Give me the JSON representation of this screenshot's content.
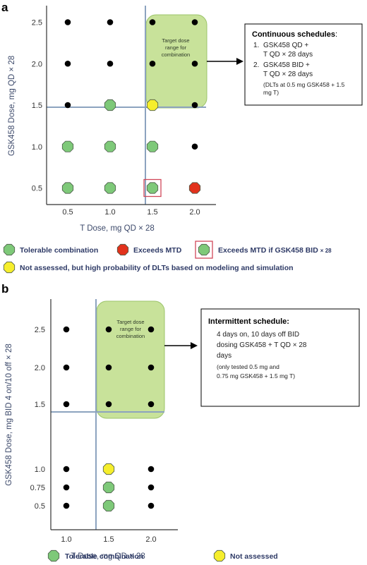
{
  "colors": {
    "tolerable": "#7ec979",
    "exceeds": "#e2321c",
    "not_assessed": "#f6ee2c",
    "dot": "#000000",
    "target_fill": "#c8e29a",
    "axis": "#333333",
    "divider": "#8ca3bf",
    "highlight_box": "#d1485a"
  },
  "chart_data": [
    {
      "panel": "a",
      "type": "scatter",
      "xlabel": "T Dose, mg QD × 28",
      "ylabel": "GSK458 Dose, mg QD × 28",
      "x_ticks": [
        "0.5",
        "1.0",
        "1.5",
        "2.0"
      ],
      "y_ticks": [
        "0.5",
        "1.0",
        "1.5",
        "2.0",
        "2.5"
      ],
      "xlim": [
        0.25,
        2.25
      ],
      "ylim": [
        0.3,
        2.7
      ],
      "x_divider": 1.4,
      "y_divider": 1.4,
      "target_region": {
        "label_lines": [
          "Target dose",
          "range for",
          "combination"
        ],
        "x": [
          1.4,
          2.15
        ],
        "y": [
          1.38,
          2.7
        ]
      },
      "points": [
        {
          "x": 0.5,
          "y": 0.5,
          "status": "tolerable"
        },
        {
          "x": 1.0,
          "y": 0.5,
          "status": "tolerable"
        },
        {
          "x": 1.5,
          "y": 0.5,
          "status": "tolerable",
          "highlight": true
        },
        {
          "x": 2.0,
          "y": 0.5,
          "status": "exceeds"
        },
        {
          "x": 0.5,
          "y": 1.0,
          "status": "tolerable"
        },
        {
          "x": 1.0,
          "y": 1.0,
          "status": "tolerable"
        },
        {
          "x": 1.5,
          "y": 1.0,
          "status": "tolerable"
        },
        {
          "x": 2.0,
          "y": 1.0,
          "status": "dot"
        },
        {
          "x": 0.5,
          "y": 1.5,
          "status": "dot"
        },
        {
          "x": 1.0,
          "y": 1.5,
          "status": "tolerable"
        },
        {
          "x": 1.5,
          "y": 1.5,
          "status": "not_assessed"
        },
        {
          "x": 2.0,
          "y": 1.5,
          "status": "dot"
        },
        {
          "x": 0.5,
          "y": 2.0,
          "status": "dot"
        },
        {
          "x": 1.0,
          "y": 2.0,
          "status": "dot"
        },
        {
          "x": 1.5,
          "y": 2.0,
          "status": "dot"
        },
        {
          "x": 2.0,
          "y": 2.0,
          "status": "dot"
        },
        {
          "x": 0.5,
          "y": 2.5,
          "status": "dot"
        },
        {
          "x": 1.0,
          "y": 2.5,
          "status": "dot"
        },
        {
          "x": 1.5,
          "y": 2.5,
          "status": "dot"
        },
        {
          "x": 2.0,
          "y": 2.5,
          "status": "dot"
        }
      ],
      "callout": {
        "title": "Continuous schedules",
        "title_suffix": ":",
        "items": [
          {
            "num": "1.",
            "lines": [
              "GSK458 QD +",
              "T QD × 28 days"
            ]
          },
          {
            "num": "2.",
            "lines": [
              "GSK458 BID +",
              "T QD × 28 days"
            ]
          }
        ],
        "note_lines": [
          "(DLTs at 0.5 mg GSK458 + 1.5",
          "mg T)"
        ]
      },
      "legend": [
        {
          "status": "tolerable",
          "label": "Tolerable combination"
        },
        {
          "status": "exceeds",
          "label": "Exceeds MTD"
        },
        {
          "status": "tolerable",
          "highlight": true,
          "label": "Exceeds MTD if GSK458 BID",
          "suffix": "× 28"
        },
        {
          "status": "not_assessed",
          "label": "Not assessed, but high probability of DLTs based on modeling and simulation"
        }
      ]
    },
    {
      "panel": "b",
      "type": "scatter",
      "xlabel": "T Dose, mg QD × 28",
      "ylabel": "GSK458 Dose, mg BID 4 on/10 off × 28",
      "x_ticks": [
        "1.0",
        "1.5",
        "2.0"
      ],
      "y_ticks": [
        "0.5",
        "0.75",
        "1.0",
        "1.5",
        "2.0",
        "2.5"
      ],
      "y_categories": [
        "0.5",
        "0.75",
        "1.0",
        "1.5",
        "2.0",
        "2.5"
      ],
      "x_divider": 1.3,
      "target_region": {
        "label_lines": [
          "Target dose",
          "range for",
          "combination"
        ]
      },
      "points": [
        {
          "x": 1.0,
          "y": "0.5",
          "status": "dot"
        },
        {
          "x": 1.5,
          "y": "0.5",
          "status": "tolerable"
        },
        {
          "x": 2.0,
          "y": "0.5",
          "status": "dot"
        },
        {
          "x": 1.0,
          "y": "0.75",
          "status": "dot"
        },
        {
          "x": 1.5,
          "y": "0.75",
          "status": "tolerable"
        },
        {
          "x": 2.0,
          "y": "0.75",
          "status": "dot"
        },
        {
          "x": 1.0,
          "y": "1.0",
          "status": "dot"
        },
        {
          "x": 1.5,
          "y": "1.0",
          "status": "not_assessed"
        },
        {
          "x": 2.0,
          "y": "1.0",
          "status": "dot"
        },
        {
          "x": 1.0,
          "y": "1.5",
          "status": "dot"
        },
        {
          "x": 1.5,
          "y": "1.5",
          "status": "dot"
        },
        {
          "x": 2.0,
          "y": "1.5",
          "status": "dot"
        },
        {
          "x": 1.0,
          "y": "2.0",
          "status": "dot"
        },
        {
          "x": 1.5,
          "y": "2.0",
          "status": "dot"
        },
        {
          "x": 2.0,
          "y": "2.0",
          "status": "dot"
        },
        {
          "x": 1.0,
          "y": "2.5",
          "status": "dot"
        },
        {
          "x": 1.5,
          "y": "2.5",
          "status": "dot"
        },
        {
          "x": 2.0,
          "y": "2.5",
          "status": "dot"
        }
      ],
      "callout": {
        "title": "Intermittent schedule:",
        "lines": [
          "4 days on, 10 days off BID",
          "dosing GSK458 + T QD × 28",
          "days"
        ],
        "note_lines": [
          "(only tested 0.5 mg and",
          "0.75 mg GSK458 + 1.5 mg T)"
        ]
      },
      "legend": [
        {
          "status": "tolerable",
          "label": "Tolerable combination"
        },
        {
          "status": "not_assessed",
          "label": "Not assessed"
        }
      ]
    }
  ]
}
